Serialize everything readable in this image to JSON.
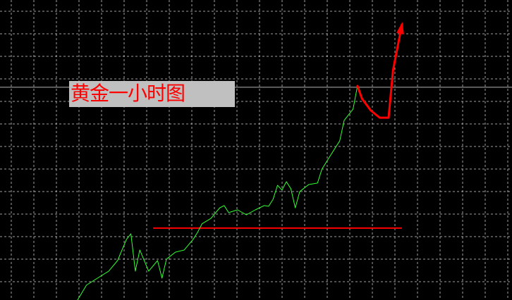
{
  "chart_data": {
    "type": "line",
    "title": "黄金一小时图",
    "xlabel": "",
    "ylabel": "",
    "grid": true,
    "background": "#000000",
    "grid_color": "#c8c8c8",
    "series": [
      {
        "role": "price",
        "color": "#33ff33",
        "x": [
          0,
          2,
          4,
          7,
          9,
          11,
          12,
          13,
          14,
          16,
          18,
          19,
          20,
          22,
          24,
          26,
          27,
          28,
          30,
          32,
          33,
          34,
          36,
          38,
          40,
          42,
          43,
          44,
          45,
          46,
          47,
          48,
          49,
          50,
          52,
          54,
          55,
          57,
          59,
          60,
          62,
          63
        ],
        "y": [
          0.0,
          0.66,
          0.91,
          1.28,
          1.75,
          2.69,
          2.94,
          1.28,
          2.22,
          1.28,
          1.75,
          0.97,
          1.81,
          2.12,
          2.22,
          2.69,
          3.0,
          3.38,
          3.62,
          4.09,
          4.19,
          3.88,
          4.0,
          3.78,
          4.0,
          4.19,
          4.16,
          4.47,
          5.09,
          4.88,
          5.25,
          4.94,
          4.09,
          4.81,
          5.12,
          5.19,
          5.81,
          6.44,
          7.06,
          7.97,
          8.47,
          9.5
        ]
      },
      {
        "role": "projected-path",
        "color": "#ff0000",
        "x": [
          63,
          64,
          66,
          68,
          70,
          71,
          73
        ],
        "y": [
          9.5,
          8.94,
          8.41,
          8.09,
          8.09,
          10.19,
          12.22
        ],
        "arrow": true
      }
    ],
    "reference_lines": [
      {
        "role": "support",
        "color": "#ff0000",
        "y": 3.19,
        "x_range": [
          17,
          73
        ]
      },
      {
        "role": "current-price",
        "color": "#b4b4b4",
        "y": 9.44
      }
    ]
  }
}
